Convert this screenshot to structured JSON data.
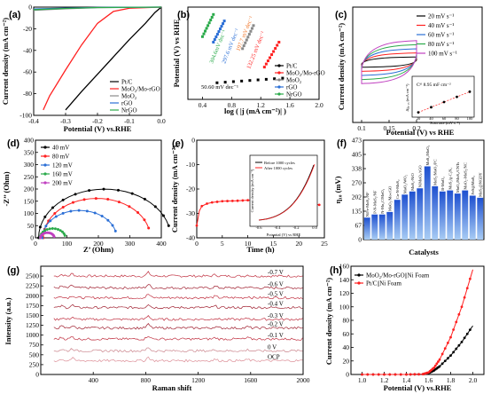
{
  "colors": {
    "black": "#000000",
    "red": "#ff2020",
    "gray": "#8a8a8a",
    "blue": "#2b6fd6",
    "green": "#2aaa4a",
    "orange": "#f07020",
    "magenta": "#c040c0",
    "teal": "#20a0a0"
  },
  "chart_data": [
    {
      "id": "a",
      "type": "line",
      "panel": "(a)",
      "xlabel": "Potential (V) vs.RHE",
      "ylabel": "Current density (mA cm⁻²)",
      "xlim": [
        -0.4,
        0.0
      ],
      "ylim": [
        -100,
        0
      ],
      "xticks": [
        "-0.4",
        "-0.3",
        "-0.2",
        "-0.1",
        "0.0"
      ],
      "yticks": [
        "0",
        "-20",
        "-40",
        "-60",
        "-80",
        "-100"
      ],
      "legend_pos": "bottom-right",
      "series": [
        {
          "name": "Pt/C",
          "color": "#000000",
          "x": [
            0,
            -0.02,
            -0.05,
            -0.1,
            -0.15,
            -0.2,
            -0.25,
            -0.3
          ],
          "y": [
            0,
            -5,
            -15,
            -30,
            -46,
            -62,
            -78,
            -95
          ]
        },
        {
          "name": "MoO₂/Mo-rGO",
          "color": "#ff2020",
          "x": [
            0,
            -0.1,
            -0.15,
            -0.2,
            -0.25,
            -0.3,
            -0.35,
            -0.37
          ],
          "y": [
            0,
            -1,
            -4,
            -15,
            -35,
            -58,
            -82,
            -95
          ]
        },
        {
          "name": "MoO₂",
          "color": "#8a8a8a",
          "x": [
            0,
            -0.2,
            -0.3,
            -0.4
          ],
          "y": [
            0,
            -0.5,
            -1.5,
            -3
          ]
        },
        {
          "name": "rGO",
          "color": "#2b6fd6",
          "x": [
            0,
            -0.2,
            -0.3,
            -0.4
          ],
          "y": [
            0,
            -0.3,
            -0.9,
            -1.8
          ]
        },
        {
          "name": "NrGO",
          "color": "#2aaa4a",
          "x": [
            0,
            -0.2,
            -0.3,
            -0.4
          ],
          "y": [
            0,
            -0.4,
            -1.2,
            -2.4
          ]
        }
      ]
    },
    {
      "id": "b",
      "type": "line",
      "panel": "(b)",
      "xlabel": "log ( |j (mA cm⁻²)| )",
      "ylabel": "Potential (V) vs RHE",
      "xlim": [
        0.2,
        2.0
      ],
      "xticks": [
        "0.4",
        "0.8",
        "1.2",
        "1.6",
        "2.0"
      ],
      "legend_pos": "right",
      "series": [
        {
          "name": "Pt/C",
          "color": "#000000",
          "slope_label": "50.60 mV dec⁻¹",
          "x": [
            0.6,
            1.5
          ],
          "y": [
            0.18,
            0.23
          ]
        },
        {
          "name": "MoO₂/Mo-rGO",
          "color": "#ff2020",
          "slope_label": "132.25 mV dec⁻¹",
          "x": [
            1.25,
            1.45
          ],
          "y": [
            0.35,
            0.62
          ]
        },
        {
          "name": "MoO₂",
          "color": "#8a8a8a",
          "slope_label": "",
          "x": [
            0.95,
            1.1
          ],
          "y": [
            0.55,
            0.8
          ]
        },
        {
          "name": "rGO",
          "color": "#2b6fd6",
          "slope_label": "",
          "x": [
            0.55,
            0.7
          ],
          "y": [
            0.62,
            0.85
          ]
        },
        {
          "name": "NrGO",
          "color": "#2aaa4a",
          "slope_label": "",
          "x": [
            0.4,
            0.55
          ],
          "y": [
            0.68,
            0.92
          ]
        }
      ],
      "rotated_labels": [
        "304.6mV dec⁻¹",
        "297.6 mV dec⁻¹",
        "197.7 mV dec⁻¹"
      ]
    },
    {
      "id": "c",
      "type": "line",
      "panel": "(c)",
      "xlabel": "Potential (V) vs RHE",
      "ylabel": "Current density (mA cm⁻²)",
      "xlim": [
        0.1,
        0.2
      ],
      "xticks": [
        "0.1",
        "0.15",
        "0.2"
      ],
      "legend_pos": "top-right",
      "series": [
        {
          "name": "20 mV s⁻¹",
          "color": "#000000",
          "half_width": 0.25
        },
        {
          "name": "40 mV s⁻¹",
          "color": "#ff2020",
          "half_width": 0.45
        },
        {
          "name": "60 mV s⁻¹",
          "color": "#2b6fd6",
          "half_width": 0.65
        },
        {
          "name": "80 mV s⁻¹",
          "color": "#2aaa4a",
          "half_width": 0.85
        },
        {
          "name": "100 mV s⁻¹",
          "color": "#c040c0",
          "half_width": 1.05
        }
      ],
      "inset": {
        "label": "Cᵈˡ 8.95 mF cm⁻²",
        "xlabel": "Scan rate (mV s⁻¹)",
        "ylabel": "Δj₀.₁₅ (mA cm⁻²)",
        "xticks": [
          "20",
          "40",
          "60",
          "80",
          "100"
        ],
        "x": [
          20,
          40,
          60,
          80,
          100
        ],
        "y": [
          0.2,
          0.55,
          0.9,
          1.25,
          1.6
        ]
      }
    },
    {
      "id": "d",
      "type": "line",
      "panel": "(d)",
      "xlabel": "Z’ (Ohm)",
      "ylabel": "-Z’’ (Ohm)",
      "xlim": [
        0,
        400
      ],
      "ylim": [
        0,
        400
      ],
      "xticks": [
        "0",
        "100",
        "200",
        "300",
        "400"
      ],
      "yticks": [
        "0",
        "50",
        "100",
        "150",
        "200",
        "250",
        "300",
        "350",
        "400"
      ],
      "legend_pos": "top-left",
      "series": [
        {
          "name": "40 mV",
          "color": "#000000",
          "center": 220,
          "radius": 210
        },
        {
          "name": "80 mV",
          "color": "#ff2020",
          "center": 195,
          "radius": 170
        },
        {
          "name": "120 mV",
          "color": "#2b6fd6",
          "center": 140,
          "radius": 118
        },
        {
          "name": "160 mV",
          "color": "#2aaa4a",
          "center": 55,
          "radius": 40
        },
        {
          "name": "200 mV",
          "color": "#c040c0",
          "center": 38,
          "radius": 22
        }
      ]
    },
    {
      "id": "e",
      "type": "line",
      "panel": "(e)",
      "xlabel": "Time (h)",
      "ylabel": "Current density (mA cm⁻²)",
      "xlim": [
        0,
        25
      ],
      "ylim": [
        -40,
        0
      ],
      "xticks": [
        "0",
        "5",
        "10",
        "15",
        "20",
        "25"
      ],
      "yticks": [
        "0",
        "-10",
        "-20",
        "-30",
        "-40"
      ],
      "series": [
        {
          "name": "stability",
          "color": "#ff2020",
          "x": [
            0,
            0.5,
            1,
            2,
            3,
            5,
            8,
            10,
            12,
            15,
            18,
            20,
            22,
            24
          ],
          "y": [
            -35,
            -29,
            -27,
            -26,
            -25.5,
            -25,
            -24.8,
            -24.6,
            -24.7,
            -24.8,
            -25,
            -25.4,
            -26,
            -26.5
          ]
        }
      ],
      "inset": {
        "legend": [
          "Before 1000 cycles",
          "After 1000 cycles"
        ],
        "xlabel": "Potential (V) vs RHE",
        "ylabel": "Current density (mA cm⁻²)",
        "xticks": [
          "-0.6",
          "-0.4",
          "-0.2",
          "0.0"
        ]
      }
    },
    {
      "id": "f",
      "type": "bar",
      "panel": "(f)",
      "xlabel": "Catalysts",
      "ylabel": "η₁₀ (mV)",
      "ylim": [
        0,
        475
      ],
      "yticks": [
        "0",
        "67",
        "135",
        "202",
        "270",
        "338",
        "405",
        "473"
      ],
      "categories": [
        "NiFe-MoS₂/NF",
        "P-N-MoS₂/NF",
        "N-Mo₂C/MoO₂",
        "MoO₂/Mo-rGO",
        "Co-N-MoS₂",
        "MoO₂/WO₂",
        "MoS₂-NiO",
        "NiMoO₄/rGO",
        "MoS₂/MoO₂",
        "MoS₂/MoO₂/PC",
        "B-MoO₂",
        "MoS₂/g-C₃N₄",
        "MoO₂/MoS₂/CNTs",
        "MoO₂-MoS₂/NC",
        "FeS@MoS₂",
        "MoS₂@NGDY"
      ],
      "values": [
        105,
        120,
        120,
        132,
        190,
        215,
        230,
        245,
        350,
        255,
        230,
        235,
        220,
        235,
        210,
        200
      ]
    },
    {
      "id": "g",
      "type": "line",
      "panel": "(g)",
      "xlabel": "Raman shift",
      "ylabel": "Intensity (a.u.)",
      "xlim": [
        0,
        2000
      ],
      "ylim": [
        0,
        2750
      ],
      "xticks": [
        "400",
        "800",
        "1200",
        "1600",
        "2000"
      ],
      "yticks": [
        "0",
        "250",
        "500",
        "750",
        "1000",
        "1250",
        "1500",
        "1750",
        "2000",
        "2250",
        "2500"
      ],
      "series": [
        {
          "name": "-0.7 V",
          "offset": 2500
        },
        {
          "name": "-0.6 V",
          "offset": 2200
        },
        {
          "name": "-0.5 V",
          "offset": 1950
        },
        {
          "name": "-0.4 V",
          "offset": 1700
        },
        {
          "name": "-0.3 V",
          "offset": 1400
        },
        {
          "name": "-0.2 V",
          "offset": 1180
        },
        {
          "name": "-0.1 V",
          "offset": 900
        },
        {
          "name": "0 V",
          "offset": 600
        },
        {
          "name": "OCP",
          "offset": 350
        }
      ]
    },
    {
      "id": "h",
      "type": "line",
      "panel": "(h)",
      "xlabel": "Potential (V) vs.RHE",
      "ylabel": "Current density (mA cm⁻²)",
      "xlim": [
        0.9,
        2.1
      ],
      "ylim": [
        0,
        160
      ],
      "xticks": [
        "1.0",
        "1.2",
        "1.4",
        "1.6",
        "1.8",
        "2.0"
      ],
      "yticks": [
        "0",
        "20",
        "40",
        "60",
        "80",
        "100",
        "120",
        "140",
        "160"
      ],
      "legend_pos": "top-left",
      "series": [
        {
          "name": "MoO₂/Mo-rGO||Ni Foam",
          "color": "#000000",
          "x": [
            1.0,
            1.2,
            1.4,
            1.55,
            1.6,
            1.65,
            1.7,
            1.8,
            1.9,
            2.0
          ],
          "y": [
            0,
            0,
            0,
            0.5,
            2,
            6,
            12,
            28,
            48,
            72
          ]
        },
        {
          "name": "Pt/C||Ni Foam",
          "color": "#ff2020",
          "x": [
            1.0,
            1.2,
            1.4,
            1.55,
            1.6,
            1.65,
            1.7,
            1.8,
            1.9,
            2.0
          ],
          "y": [
            0,
            0,
            0,
            0.5,
            3,
            10,
            22,
            55,
            100,
            155
          ]
        }
      ]
    }
  ]
}
